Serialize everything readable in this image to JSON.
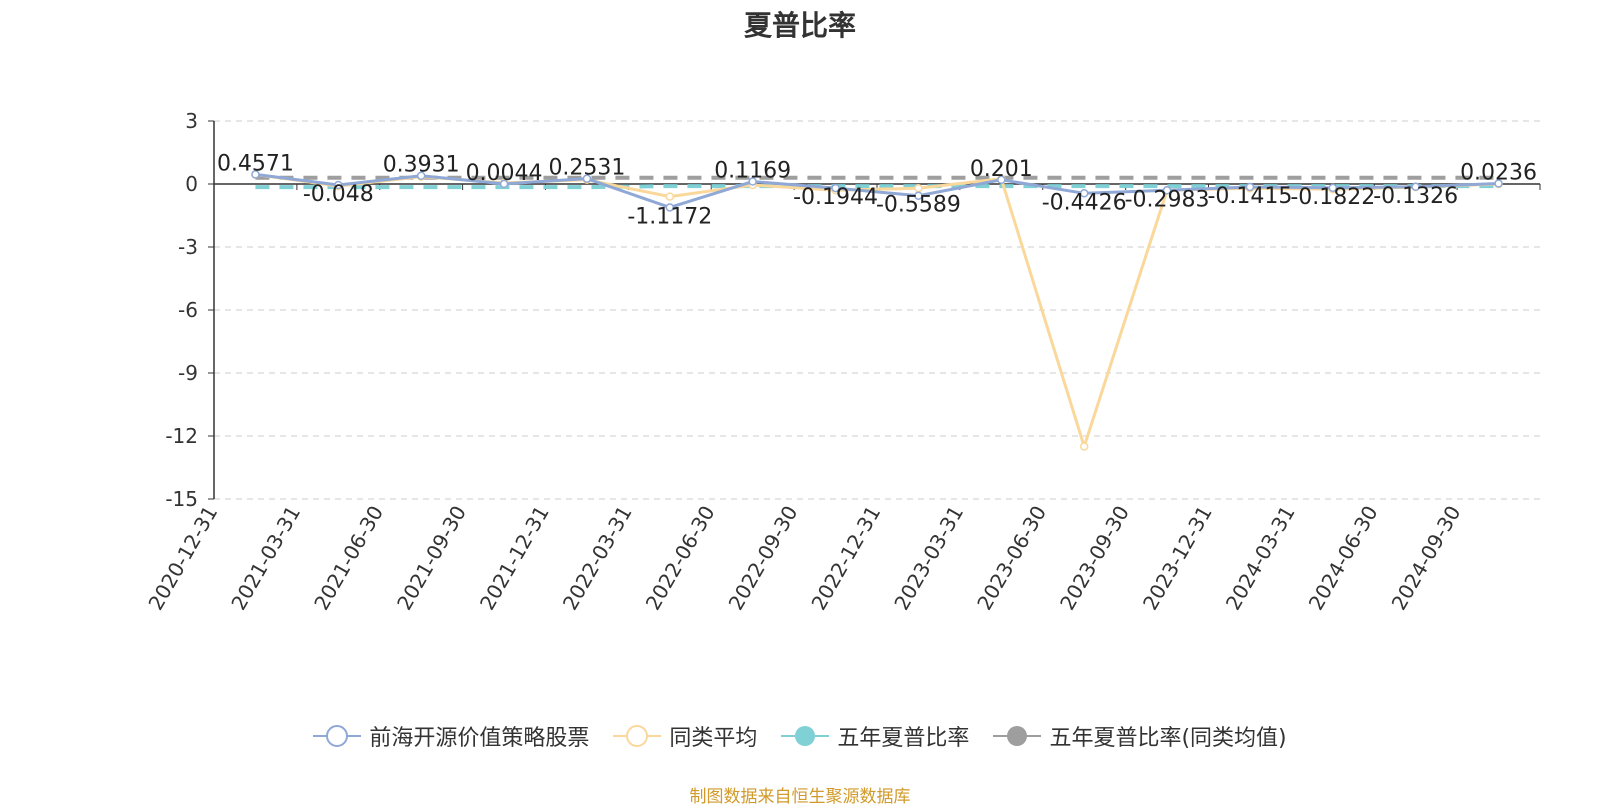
{
  "title": "夏普比率",
  "source_note": "制图数据来自恒生聚源数据库",
  "colors": {
    "fund": "#8fa8d6",
    "avg": "#fad89b",
    "five_year": "#7fd1d6",
    "five_year_avg": "#9e9e9e"
  },
  "chart_data": {
    "type": "line",
    "title": "夏普比率",
    "xlabel": "",
    "ylabel": "",
    "ylim": [
      -15,
      3
    ],
    "yticks": [
      3,
      0,
      -3,
      -6,
      -9,
      -12,
      -15
    ],
    "grid": true,
    "legend_position": "bottom",
    "categories": [
      "2020-12-31",
      "2021-03-31",
      "2021-06-30",
      "2021-09-30",
      "2021-12-31",
      "2022-03-31",
      "2022-06-30",
      "2022-09-30",
      "2022-12-31",
      "2023-03-31",
      "2023-06-30",
      "2023-09-30",
      "2023-12-31",
      "2024-03-31",
      "2024-06-30",
      "2024-09-30"
    ],
    "series": [
      {
        "name": "前海开源价值策略股票",
        "color": "#8fa8d6",
        "values": [
          0.4571,
          -0.048,
          0.3931,
          0.0044,
          0.2531,
          -1.1172,
          0.1169,
          -0.1944,
          -0.5589,
          0.201,
          -0.4426,
          -0.2983,
          -0.1415,
          -0.1822,
          -0.1326,
          0.0236
        ]
      },
      {
        "name": "同类平均",
        "color": "#fad89b",
        "values": [
          0.45,
          -0.1,
          0.35,
          0.05,
          0.2,
          -0.6,
          -0.05,
          -0.3,
          -0.2,
          0.25,
          -12.5,
          -0.3,
          -0.2,
          -0.25,
          -0.15,
          0.0
        ]
      },
      {
        "name": "五年夏普比率",
        "color": "#7fd1d6",
        "values": [
          -0.15,
          -0.15,
          -0.15,
          -0.15,
          -0.15,
          -0.1,
          -0.1,
          -0.1,
          -0.1,
          -0.1,
          -0.1,
          -0.1,
          -0.1,
          -0.1,
          -0.1,
          -0.1
        ]
      },
      {
        "name": "五年夏普比率(同类均值)",
        "color": "#9e9e9e",
        "values": [
          0.3,
          0.3,
          0.3,
          0.3,
          0.3,
          0.3,
          0.3,
          0.3,
          0.3,
          0.3,
          0.3,
          0.3,
          0.3,
          0.3,
          0.3,
          0.3
        ]
      }
    ],
    "data_labels": [
      "0.4571",
      "-0.048",
      "0.3931",
      "0.0044",
      "0.2531",
      "-1.1172",
      "0.1169",
      "-0.1944",
      "-0.5589",
      "0.201",
      "-0.4426",
      "-0.2983",
      "-0.1415",
      "-0.1822",
      "-0.1326",
      "0.0236"
    ]
  }
}
